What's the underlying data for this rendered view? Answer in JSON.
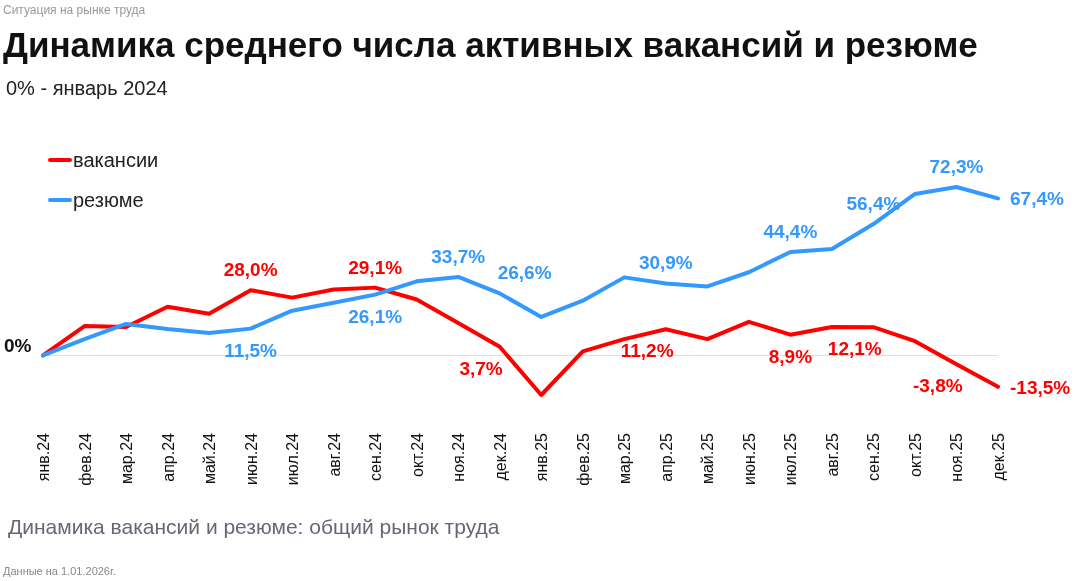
{
  "chart_data": {
    "type": "line",
    "title": "Динамика среднего числа активных вакансий и резюме",
    "subtitle": "0% - январь 2024",
    "annotations": [
      "Ситуация на рынке труда",
      "Динамика вакансий и резюме: общий рынок труда",
      "Данные на 1.01.2026г."
    ],
    "categories": [
      "янв.24",
      "фев.24",
      "мар.24",
      "апр.24",
      "май.24",
      "июн.24",
      "июл.24",
      "авг.24",
      "сен.24",
      "окт.24",
      "ноя.24",
      "дек.24",
      "янв.25",
      "фев.25",
      "мар.25",
      "апр.25",
      "май.25",
      "июн.25",
      "июл.25",
      "авг.25",
      "сен.25",
      "окт.25",
      "ноя.25",
      "дек.25"
    ],
    "series": [
      {
        "name": "вакансии",
        "color": "#ff0000",
        "values": [
          0,
          12.6,
          12.2,
          20.9,
          17.9,
          28.0,
          24.8,
          28.3,
          29.1,
          24.0,
          13.9,
          3.7,
          -17.0,
          1.7,
          7.0,
          11.2,
          7.0,
          14.4,
          8.9,
          12.2,
          12.1,
          6.1,
          -3.8,
          -13.5
        ],
        "value_labels": [
          null,
          null,
          null,
          null,
          null,
          "28,0%",
          null,
          null,
          "29,1%",
          null,
          null,
          "3,7%",
          null,
          null,
          null,
          "11,2%",
          null,
          null,
          "8,9%",
          null,
          "12,1%",
          null,
          "-3,8%",
          "-13,5%"
        ]
      },
      {
        "name": "резюме",
        "color": "#3399ff",
        "values": [
          0,
          7.0,
          13.5,
          11.3,
          9.6,
          11.5,
          19.2,
          22.6,
          26.1,
          31.8,
          33.7,
          26.6,
          16.5,
          23.5,
          33.5,
          30.9,
          29.6,
          35.7,
          44.4,
          45.7,
          56.4,
          69.3,
          72.3,
          67.4
        ],
        "value_labels": [
          null,
          null,
          null,
          null,
          null,
          "11,5%",
          null,
          null,
          "26,1%",
          null,
          "33,7%",
          "26,6%",
          null,
          null,
          null,
          "30,9%",
          null,
          null,
          "44,4%",
          null,
          "56,4%",
          null,
          "72,3%",
          "67,4%"
        ]
      }
    ],
    "ref_lines": [
      {
        "axis": "y",
        "value": 0,
        "label": "0%",
        "color": "#dddddd"
      }
    ],
    "legend": "top left",
    "line_style": "solid",
    "marker": "none"
  }
}
